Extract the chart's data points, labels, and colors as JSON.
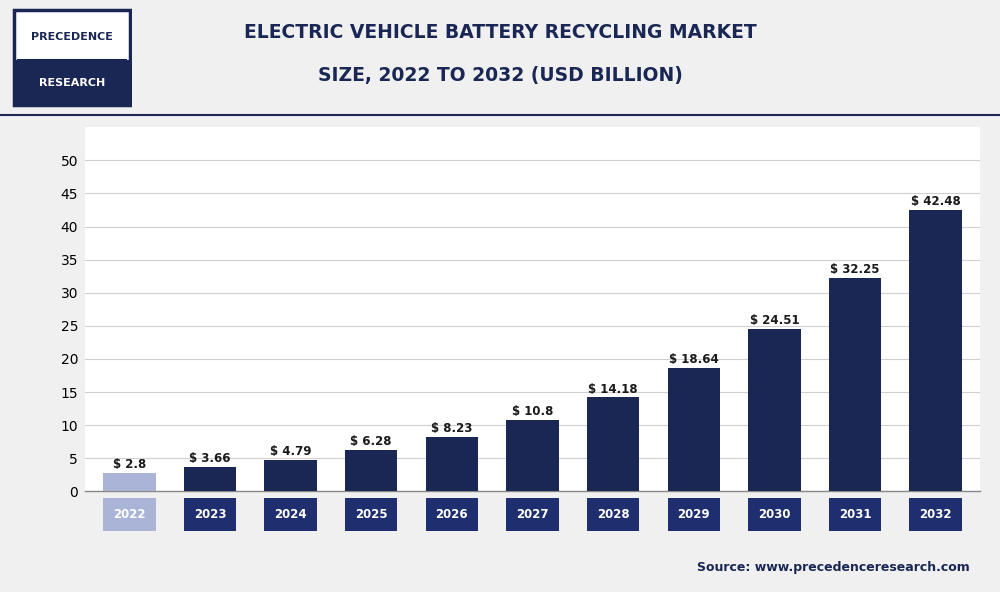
{
  "years": [
    "2022",
    "2023",
    "2024",
    "2025",
    "2026",
    "2027",
    "2028",
    "2029",
    "2030",
    "2031",
    "2032"
  ],
  "values": [
    2.8,
    3.66,
    4.79,
    6.28,
    8.23,
    10.8,
    14.18,
    18.64,
    24.51,
    32.25,
    42.48
  ],
  "bar_colors": [
    "#aab4d6",
    "#1a2754",
    "#1a2754",
    "#1a2754",
    "#1a2754",
    "#1a2754",
    "#1a2754",
    "#1a2754",
    "#1a2754",
    "#1a2754",
    "#1a2754"
  ],
  "tick_bg_2022": "#aab4d6",
  "tick_bg_rest": "#1e2e6e",
  "title_line1": "ELECTRIC VEHICLE BATTERY RECYCLING MARKET",
  "title_line2": "SIZE, 2022 TO 2032 (USD BILLION)",
  "title_color": "#1a2754",
  "yticks": [
    0,
    5,
    10,
    15,
    20,
    25,
    30,
    35,
    40,
    45,
    50
  ],
  "ylim": [
    0,
    55
  ],
  "grid_color": "#d0d0d0",
  "background_color": "#f0f0f0",
  "plot_bg_color": "#ffffff",
  "source_text": "Source: www.precedenceresearch.com",
  "logo_text1": "PRECEDENCE",
  "logo_text2": "RESEARCH",
  "label_prefix": "$ "
}
